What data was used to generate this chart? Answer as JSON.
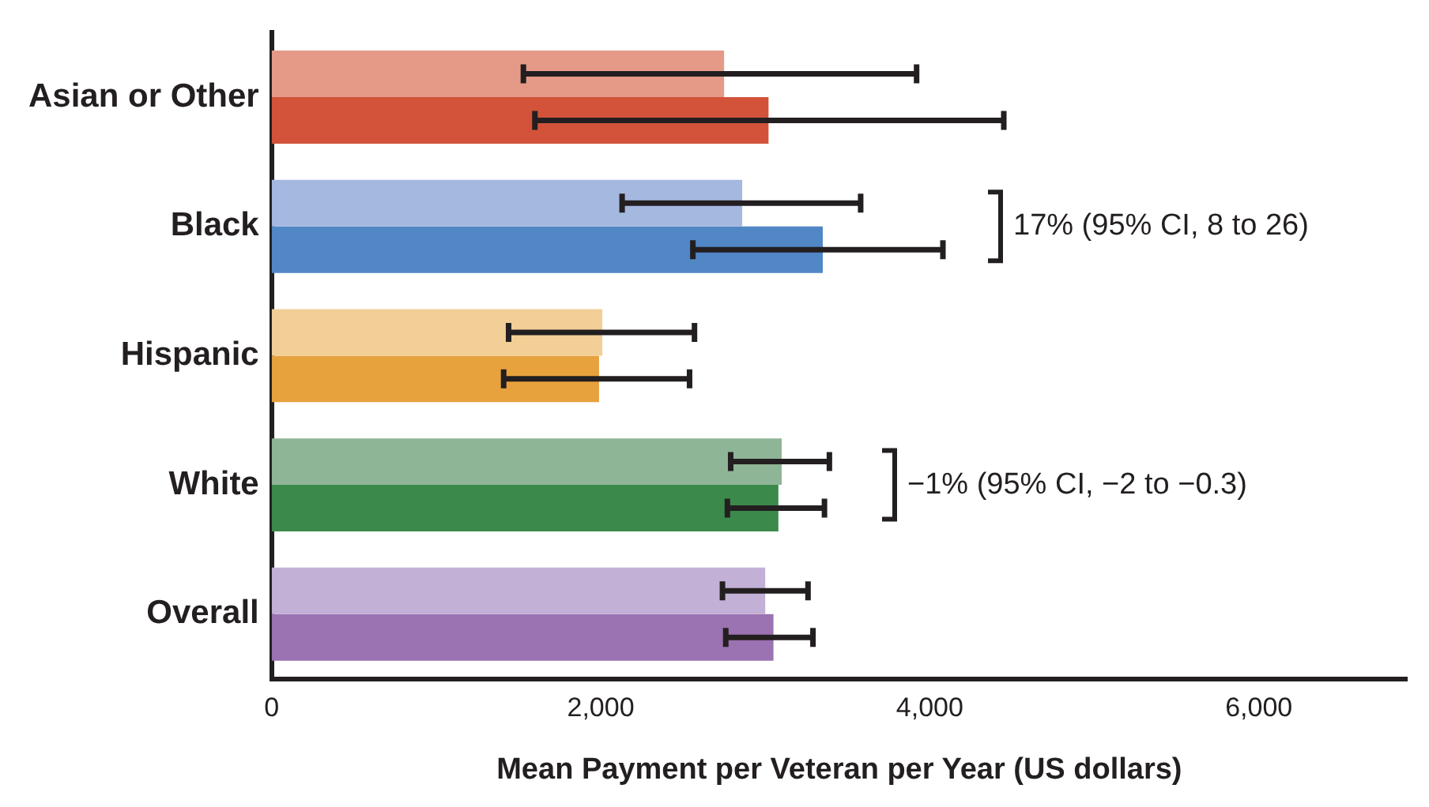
{
  "chart_data": {
    "type": "bar",
    "orientation": "horizontal",
    "xlabel": "Mean Payment per Veteran per Year (US dollars)",
    "categories": [
      "Asian or Other",
      "Black",
      "Hispanic",
      "White",
      "Overall"
    ],
    "series": [
      {
        "colors": [
          "#e59a88",
          "#a5b8e0",
          "#f2cf96",
          "#8fb597",
          "#c3b0d6"
        ],
        "values": [
          2750,
          2860,
          2010,
          3100,
          3000
        ],
        "errors": [
          [
            1530,
            3920
          ],
          [
            2130,
            3580
          ],
          [
            1440,
            2570
          ],
          [
            2790,
            3390
          ],
          [
            2740,
            3260
          ]
        ]
      },
      {
        "colors": [
          "#d2533a",
          "#5287c6",
          "#e7a23d",
          "#3b8a4b",
          "#9b72b2"
        ],
        "values": [
          3020,
          3350,
          1990,
          3080,
          3050
        ],
        "errors": [
          [
            1600,
            4450
          ],
          [
            2560,
            4080
          ],
          [
            1410,
            2540
          ],
          [
            2770,
            3360
          ],
          [
            2760,
            3290
          ]
        ]
      }
    ],
    "xlim": [
      0,
      6900
    ],
    "xticks": [
      0,
      {
        "value": 2000,
        "label": "2,000"
      },
      {
        "value": 4000,
        "label": "4,000"
      },
      {
        "value": 6000,
        "label": "6,000"
      }
    ],
    "grid": false,
    "legend": false,
    "annotations": [
      "17% (95% CI, 8 to 26)",
      "−1% (95% CI, −2 to −0.3)"
    ]
  }
}
